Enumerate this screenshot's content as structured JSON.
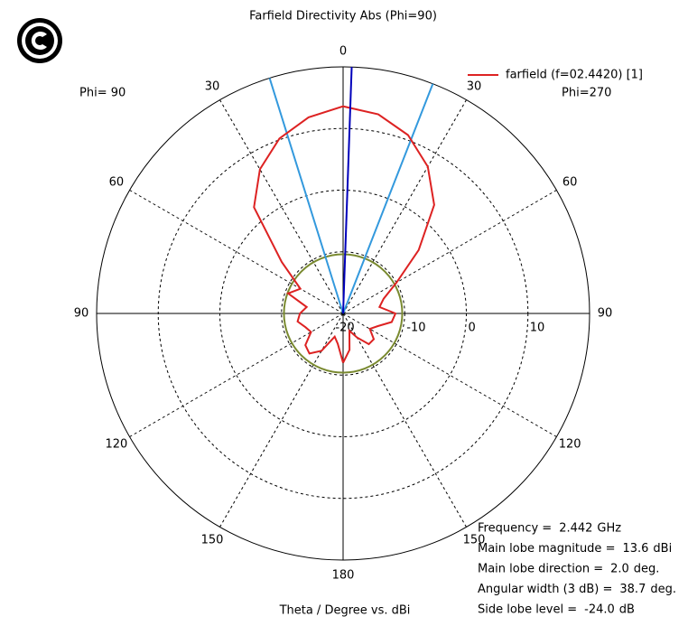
{
  "chart_data": {
    "type": "polar",
    "title": "Farfield Directivity Abs (Phi=90)",
    "left_label": "Phi= 90",
    "right_label": "Phi=270",
    "axis_label": "Theta / Degree vs. dBi",
    "rlim": [
      -20,
      20
    ],
    "rticks": [
      -20,
      -10,
      0,
      10
    ],
    "angle_ticks": [
      {
        "value": -150,
        "label": "150"
      },
      {
        "value": -120,
        "label": "120"
      },
      {
        "value": -90,
        "label": "90"
      },
      {
        "value": -60,
        "label": "60"
      },
      {
        "value": -30,
        "label": "30"
      },
      0,
      30,
      60,
      90,
      120,
      150,
      180
    ],
    "x": [
      -180,
      -170,
      -160,
      -150,
      -140,
      -130,
      -120,
      -110,
      -100,
      -90,
      -80,
      -70,
      -60,
      -50,
      -40,
      -30,
      -20,
      -10,
      0,
      10,
      20,
      30,
      40,
      50,
      60,
      70,
      80,
      90,
      100,
      110,
      120,
      130,
      140,
      150,
      160,
      170,
      180
    ],
    "series": [
      {
        "name": "farfield (f=02.4420) [1]",
        "color": "#dd2222",
        "values": [
          -12,
          -15,
          -16,
          -13,
          -11.5,
          -12,
          -14,
          -13.5,
          -12.5,
          -13,
          -14,
          -10.5,
          -12,
          -7,
          2.5,
          7,
          10.2,
          12.3,
          13.6,
          12.8,
          10.8,
          7.5,
          3,
          -4,
          -10,
          -13,
          -14,
          -11.5,
          -12,
          -14,
          -15,
          -13.5,
          -13.5,
          -15.5,
          -17,
          -14,
          -12
        ]
      }
    ],
    "annotations": [
      {
        "label": "Frequency =",
        "value": 2.442,
        "unit": "GHz"
      },
      {
        "label": "Main lobe magnitude =",
        "value": 13.6,
        "unit": "dBi"
      },
      {
        "label": "Main lobe direction =",
        "value": 2,
        "value_label": "2.0",
        "unit": "deg."
      },
      {
        "label": "Angular width (3 dB) =",
        "value": 38.7,
        "unit": "deg."
      },
      {
        "label": "Side lobe level =",
        "value": -24,
        "value_label": "-24.0",
        "unit": "dB"
      }
    ],
    "main_lobe_color": "#0000bb",
    "beam_color": "#3399dd",
    "side_lobe_color": "#7a8a30"
  }
}
